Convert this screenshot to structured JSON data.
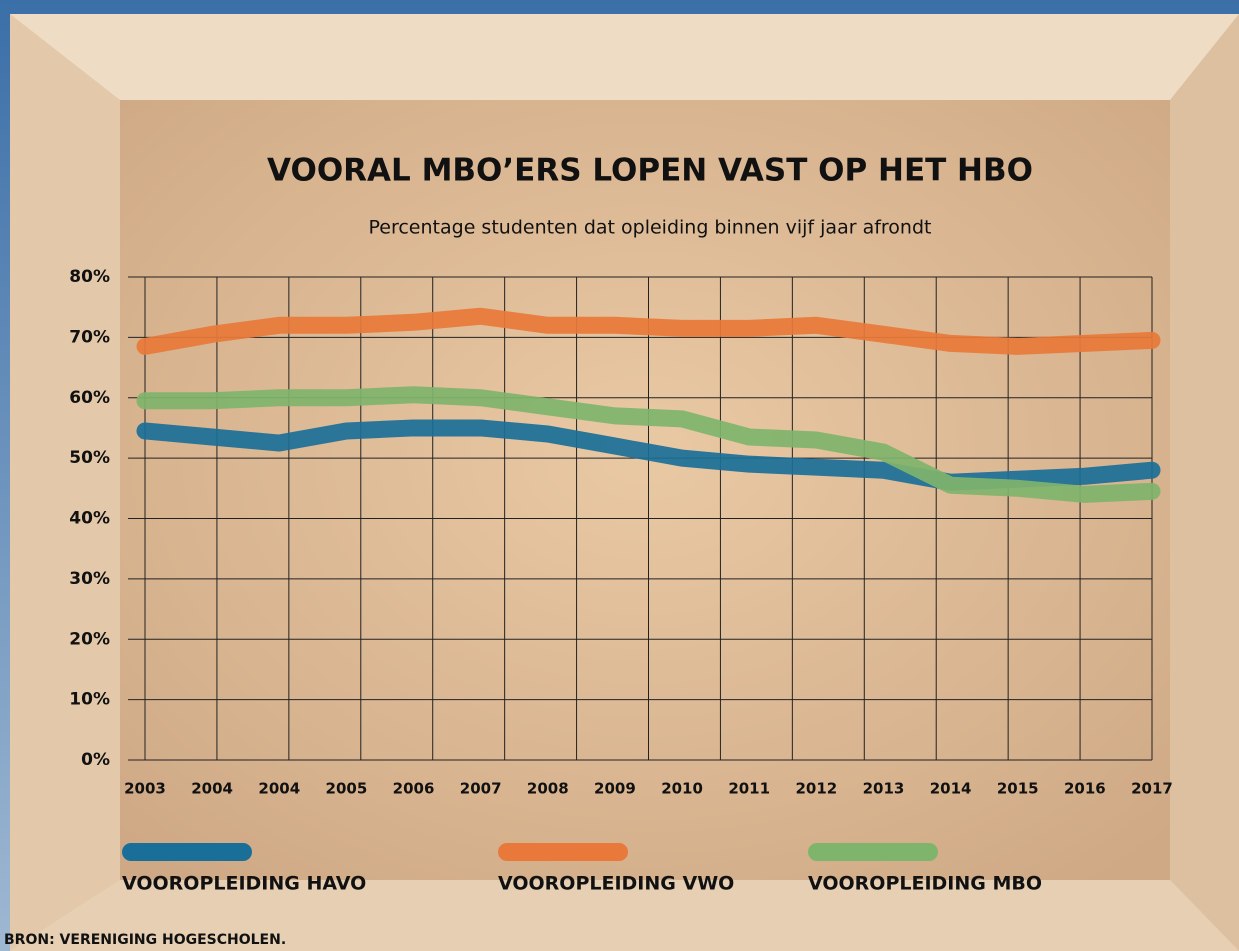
{
  "chart_data": {
    "type": "line",
    "title": "VOORAL MBO’ERS LOPEN VAST OP HET HBO",
    "subtitle": "Percentage studenten dat opleiding binnen vijf jaar afrondt",
    "source": "BRON: VERENIGING HOGESCHOLEN.",
    "categories": [
      "2003",
      "2004",
      "2004",
      "2005",
      "2006",
      "2007",
      "2008",
      "2009",
      "2010",
      "2011",
      "2012",
      "2013",
      "2014",
      "2015",
      "2016",
      "2017"
    ],
    "series": [
      {
        "name": "VOOROPLEIDING HAVO",
        "color": "#1a6f98",
        "values": [
          54.5,
          53.5,
          52.5,
          54.5,
          55,
          55,
          54,
          52,
          50,
          49,
          48.5,
          48,
          46,
          46.5,
          47,
          48
        ]
      },
      {
        "name": "VOOROPLEIDING VWO",
        "color": "#e8793a",
        "values": [
          68.5,
          70.5,
          72,
          72,
          72.5,
          73.5,
          72,
          72,
          71.5,
          71.5,
          72,
          70.5,
          69,
          68.5,
          69,
          69.5
        ]
      },
      {
        "name": "VOOROPLEIDING MBO",
        "color": "#7fb46c",
        "values": [
          59.5,
          59.5,
          60,
          60,
          60.5,
          60,
          58.5,
          57,
          56.5,
          53.5,
          53,
          51,
          45.5,
          45,
          44,
          44.5
        ]
      }
    ],
    "ylim": [
      0,
      80
    ],
    "yticks": [
      {
        "value": 0,
        "label": "0%"
      },
      {
        "value": 10,
        "label": "10%"
      },
      {
        "value": 20,
        "label": "20%"
      },
      {
        "value": 30,
        "label": "30%"
      },
      {
        "value": 40,
        "label": "40%"
      },
      {
        "value": 50,
        "label": "50%"
      },
      {
        "value": 60,
        "label": "60%"
      },
      {
        "value": 70,
        "label": "70%"
      },
      {
        "value": 80,
        "label": "80%"
      }
    ],
    "grid": true
  }
}
